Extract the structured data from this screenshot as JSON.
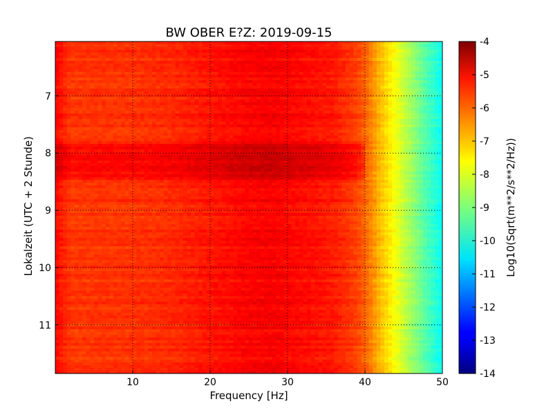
{
  "chart_data": {
    "type": "heatmap",
    "title": "BW OBER E?Z: 2019-09-15",
    "xlabel": "Frequency [Hz]",
    "ylabel": "Lokalzeit (UTC + 2 Stunde)",
    "xlim": [
      0,
      50
    ],
    "ylim": [
      11.85,
      6.05
    ],
    "x_ticks": [
      "10",
      "20",
      "30",
      "40",
      "50"
    ],
    "y_ticks": [
      "7",
      "8",
      "9",
      "10",
      "11"
    ],
    "grid": true,
    "grid_style": "dotted",
    "colormap": "jet",
    "colorbar": {
      "label": "Log10(Sqrt(m**2/s**2/Hz))",
      "range": [
        -14,
        -4
      ],
      "ticks": [
        "-4",
        "-5",
        "-6",
        "-7",
        "-8",
        "-9",
        "-10",
        "-11",
        "-12",
        "-13",
        "-14"
      ]
    },
    "spectrum_profile": {
      "frequency_hz": [
        0,
        2,
        5,
        10,
        15,
        20,
        25,
        28,
        32,
        36,
        39,
        40.5,
        42,
        43.5,
        45,
        46.5,
        48,
        49.5,
        50
      ],
      "log10_amplitude": [
        -5.3,
        -5.8,
        -5.75,
        -5.75,
        -5.65,
        -5.45,
        -5.25,
        -5.2,
        -5.35,
        -5.5,
        -5.9,
        -6.4,
        -7.1,
        -7.7,
        -8.3,
        -8.9,
        -9.5,
        -10.0,
        -10.2
      ]
    },
    "time_features": [
      {
        "start_hour": 7.85,
        "end_hour": 8.47,
        "offset_log10": 0.45,
        "description": "elevated band"
      }
    ]
  }
}
